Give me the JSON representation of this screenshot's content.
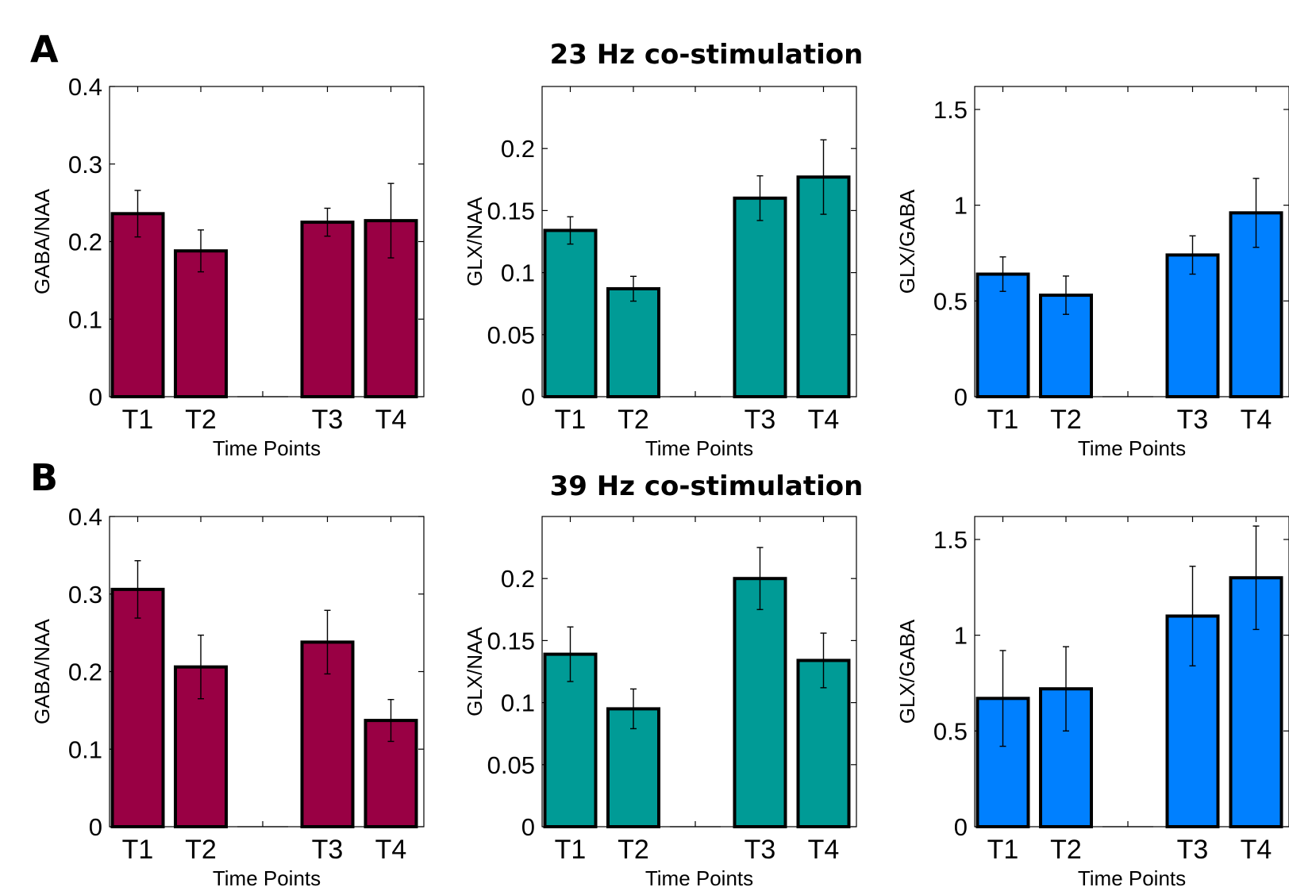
{
  "panels": [
    {
      "letter": "A",
      "title": "23 Hz co-stimulation"
    },
    {
      "letter": "B",
      "title": "39 Hz co-stimulation"
    }
  ],
  "colors": {
    "GABA/NAA": "#990044",
    "GLX/NAA": "#009b96",
    "GLX/GABA": "#0080ff"
  },
  "chart_data": [
    {
      "type": "bar",
      "panel": "A",
      "title": "23 Hz co-stimulation",
      "ylabel": "GABA/NAA",
      "xlabel": "Time Points",
      "categories": [
        "T1",
        "T2",
        "",
        "T3",
        "T4"
      ],
      "values": [
        0.236,
        0.188,
        0,
        0.225,
        0.227
      ],
      "errors": [
        0.03,
        0.027,
        0,
        0.018,
        0.048
      ],
      "ylim": [
        0,
        0.4
      ],
      "yticks": [
        0,
        0.1,
        0.2,
        0.3,
        0.4
      ],
      "ytick_labels": [
        "0",
        "0.1",
        "0.2",
        "0.3",
        "0.4"
      ]
    },
    {
      "type": "bar",
      "panel": "A",
      "title": "23 Hz co-stimulation",
      "ylabel": "GLX/NAA",
      "xlabel": "Time Points",
      "categories": [
        "T1",
        "T2",
        "",
        "T3",
        "T4"
      ],
      "values": [
        0.134,
        0.087,
        0,
        0.16,
        0.177
      ],
      "errors": [
        0.011,
        0.01,
        0,
        0.018,
        0.03
      ],
      "ylim": [
        0,
        0.25
      ],
      "yticks": [
        0,
        0.05,
        0.1,
        0.15,
        0.2
      ],
      "ytick_labels": [
        "0",
        "0.05",
        "0.1",
        "0.15",
        "0.2"
      ]
    },
    {
      "type": "bar",
      "panel": "A",
      "title": "23 Hz co-stimulation",
      "ylabel": "GLX/GABA",
      "xlabel": "Time Points",
      "categories": [
        "T1",
        "T2",
        "",
        "T3",
        "T4"
      ],
      "values": [
        0.64,
        0.53,
        0,
        0.74,
        0.96
      ],
      "errors": [
        0.09,
        0.1,
        0,
        0.1,
        0.18
      ],
      "ylim": [
        0,
        1.62
      ],
      "yticks": [
        0,
        0.5,
        1,
        1.5
      ],
      "ytick_labels": [
        "0",
        "0.5",
        "1",
        "1.5"
      ]
    },
    {
      "type": "bar",
      "panel": "B",
      "title": "39 Hz co-stimulation",
      "ylabel": "GABA/NAA",
      "xlabel": "Time Points",
      "categories": [
        "T1",
        "T2",
        "",
        "T3",
        "T4"
      ],
      "values": [
        0.306,
        0.206,
        0,
        0.238,
        0.137
      ],
      "errors": [
        0.037,
        0.041,
        0,
        0.041,
        0.027
      ],
      "ylim": [
        0,
        0.4
      ],
      "yticks": [
        0,
        0.1,
        0.2,
        0.3,
        0.4
      ],
      "ytick_labels": [
        "0",
        "0.1",
        "0.2",
        "0.3",
        "0.4"
      ]
    },
    {
      "type": "bar",
      "panel": "B",
      "title": "39 Hz co-stimulation",
      "ylabel": "GLX/NAA",
      "xlabel": "Time Points",
      "categories": [
        "T1",
        "T2",
        "",
        "T3",
        "T4"
      ],
      "values": [
        0.139,
        0.095,
        0,
        0.2,
        0.134
      ],
      "errors": [
        0.022,
        0.016,
        0,
        0.025,
        0.022
      ],
      "ylim": [
        0,
        0.25
      ],
      "yticks": [
        0,
        0.05,
        0.1,
        0.15,
        0.2
      ],
      "ytick_labels": [
        "0",
        "0.05",
        "0.1",
        "0.15",
        "0.2"
      ]
    },
    {
      "type": "bar",
      "panel": "B",
      "title": "39 Hz co-stimulation",
      "ylabel": "GLX/GABA",
      "xlabel": "Time Points",
      "categories": [
        "T1",
        "T2",
        "",
        "T3",
        "T4"
      ],
      "values": [
        0.67,
        0.72,
        0,
        1.1,
        1.3
      ],
      "errors": [
        0.25,
        0.22,
        0,
        0.26,
        0.27
      ],
      "ylim": [
        0,
        1.62
      ],
      "yticks": [
        0,
        0.5,
        1,
        1.5
      ],
      "ytick_labels": [
        "0",
        "0.5",
        "1",
        "1.5"
      ]
    }
  ]
}
